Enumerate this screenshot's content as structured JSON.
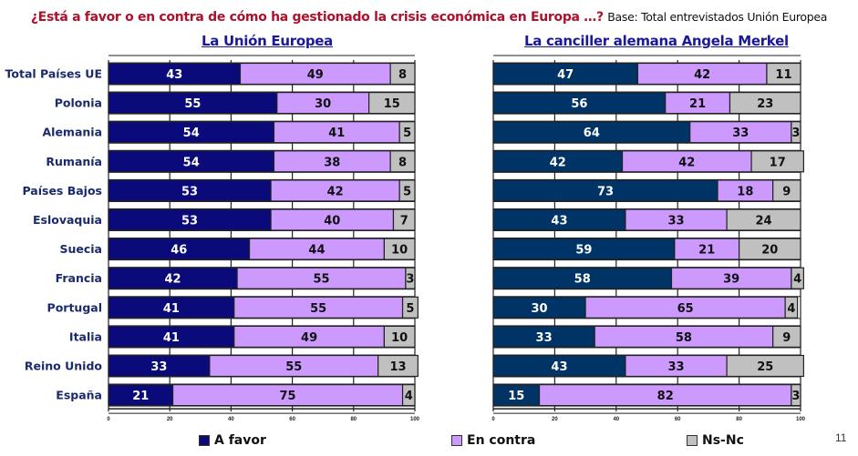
{
  "header": {
    "question": "¿Está a favor o en contra de cómo ha gestionado la crisis económica en Europa …?",
    "base": "Base: Total entrevistados Unión Europea"
  },
  "page_number": "11",
  "legend": [
    {
      "label": "A favor",
      "color": "#0a0a7a"
    },
    {
      "label": "En contra",
      "color": "#cc99ff"
    },
    {
      "label": "Ns-Nc",
      "color": "#c0c0c0"
    }
  ],
  "chart_data": [
    {
      "type": "bar",
      "orientation": "horizontal",
      "stacked": true,
      "title": "La Unión Europea",
      "categories": [
        "Total Países UE",
        "Polonia",
        "Alemania",
        "Rumanía",
        "Países Bajos",
        "Eslovaquia",
        "Suecia",
        "Francia",
        "Portugal",
        "Italia",
        "Reino Unido",
        "España"
      ],
      "series": [
        {
          "name": "A favor",
          "color": "#0a0a7a",
          "values": [
            43,
            55,
            54,
            54,
            53,
            53,
            46,
            42,
            41,
            41,
            33,
            21
          ]
        },
        {
          "name": "En contra",
          "color": "#cc99ff",
          "values": [
            49,
            30,
            41,
            38,
            42,
            40,
            44,
            55,
            55,
            49,
            55,
            75
          ]
        },
        {
          "name": "Ns-Nc",
          "color": "#c0c0c0",
          "values": [
            8,
            15,
            5,
            8,
            5,
            7,
            10,
            3,
            5,
            10,
            13,
            4
          ]
        }
      ],
      "xlim": [
        0,
        100
      ],
      "xticks": [
        0,
        20,
        40,
        60,
        80,
        100
      ],
      "xlabel": "",
      "ylabel": "",
      "grid": true,
      "legend": "bottom"
    },
    {
      "type": "bar",
      "orientation": "horizontal",
      "stacked": true,
      "title": "La canciller alemana Angela Merkel",
      "categories": [
        "Total Países UE",
        "Polonia",
        "Alemania",
        "Rumanía",
        "Países Bajos",
        "Eslovaquia",
        "Suecia",
        "Francia",
        "Portugal",
        "Italia",
        "Reino Unido",
        "España"
      ],
      "series": [
        {
          "name": "A favor",
          "color": "#003366",
          "values": [
            47,
            56,
            64,
            42,
            73,
            43,
            59,
            58,
            30,
            33,
            43,
            15
          ]
        },
        {
          "name": "En contra",
          "color": "#cc99ff",
          "values": [
            42,
            21,
            33,
            42,
            18,
            33,
            21,
            39,
            65,
            58,
            33,
            82
          ]
        },
        {
          "name": "Ns-Nc",
          "color": "#c0c0c0",
          "values": [
            11,
            23,
            3,
            17,
            9,
            24,
            20,
            4,
            4,
            9,
            25,
            3
          ]
        }
      ],
      "xlim": [
        0,
        100
      ],
      "xticks": [
        0,
        20,
        40,
        60,
        80,
        100
      ],
      "xlabel": "",
      "ylabel": "",
      "grid": true,
      "legend": "bottom"
    }
  ]
}
